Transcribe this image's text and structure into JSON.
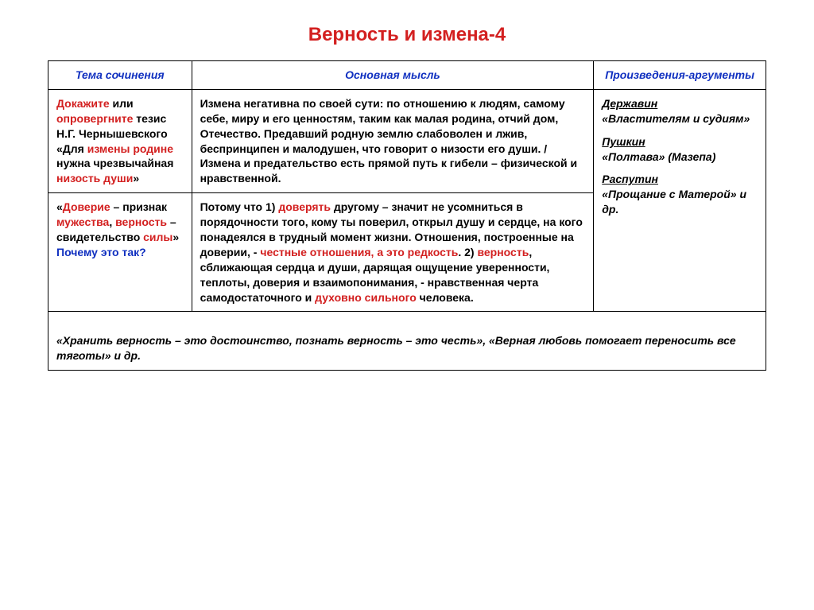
{
  "title": "Верность и измена-4",
  "headers": {
    "col1": "Тема сочинения",
    "col2": "Основная мысль",
    "col3": "Произведения-аргументы"
  },
  "row1": {
    "theme_p1": "Докажите или опровергните",
    "theme_red1": "Докажите",
    "theme_plain1": " или ",
    "theme_red2": "опровергните",
    "theme_p2a": " тезис Н.Г. Чернышевского «Для ",
    "theme_red3": "измены родине",
    "theme_p2b": " нужна чрезвычайная ",
    "theme_red4": "низость души",
    "theme_p2c": "»",
    "main_p1": "Измена негативна по своей сути: по отношению к людям, самому себе, миру и его ценностям, таким как  малая родина, отчий дом, Отечество. Предавший родную землю слабоволен и лжив, беспринципен и малодушен, что говорит о низости его души. / Измена и предательство есть прямой путь к гибели – физической и нравственной."
  },
  "row2": {
    "theme_q1": "«",
    "theme_red1": "Доверие",
    "theme_p1": " – признак ",
    "theme_red2": "мужества",
    "theme_p2": ", ",
    "theme_red3": "верность",
    "theme_p3": " – свидетельство ",
    "theme_red4": "силы",
    "theme_p4": "» ",
    "theme_blue": "Почему это так?",
    "main_a": "Потому что 1) ",
    "main_red1": "доверять",
    "main_b": " другому – значит не усомниться в порядочности того, кому ты поверил, открыл душу и сердце, на кого понадеялся в трудный момент жизни. Отношения, построенные на доверии, - ",
    "main_red2": "честные отношения, а это редкость",
    "main_c": ". 2) ",
    "main_red3": "верность",
    "main_d": ", сближающая сердца и души, дарящая ощущение уверенности, теплоты, доверия и взаимопонимания, - нравственная черта самодостаточного и ",
    "main_red4": "духовно сильного",
    "main_e": " человека."
  },
  "works": {
    "w1a": "Державин",
    "w1b": "«Властителям и судиям»",
    "w2a": "Пушкин",
    "w2b": "«Полтава» (Мазепа)",
    "w3a": "Распутин",
    "w3b": "«Прощание с Матерой» и др."
  },
  "footer": {
    "t1": "«Хранить верность – это достоинство, познать верность – это честь», «Верная любовь помогает переносить все тяготы» и др."
  },
  "colors": {
    "red": "#d32020",
    "blue": "#1030c0",
    "border": "#000000",
    "bg": "#ffffff"
  },
  "fonts": {
    "title_size": 24,
    "cell_size": 14,
    "family": "Arial"
  }
}
